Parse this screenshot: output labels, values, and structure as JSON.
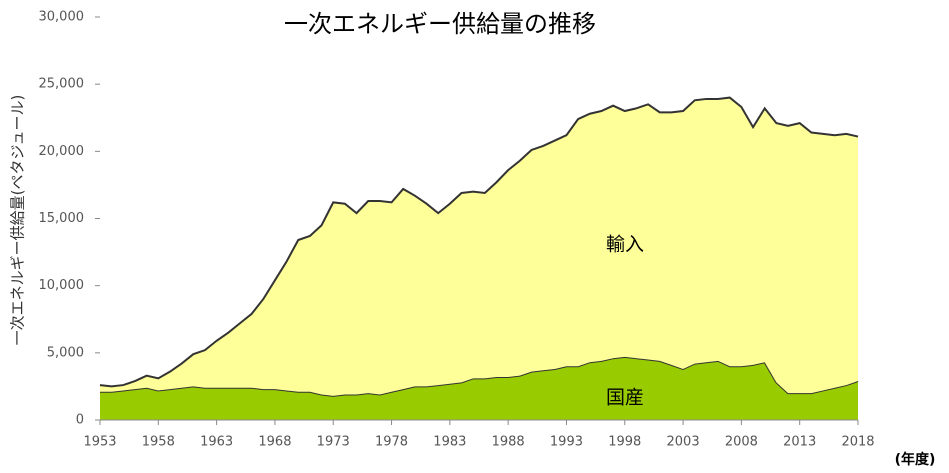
{
  "chart_data": {
    "type": "stacked-area",
    "title": "一次エネルギー供給量の推移",
    "y_label": "一次エネルギー供給量(ペタジュール)",
    "x_label": "(年度)",
    "x": [
      1953,
      1954,
      1955,
      1956,
      1957,
      1958,
      1959,
      1960,
      1961,
      1962,
      1963,
      1964,
      1965,
      1966,
      1967,
      1968,
      1969,
      1970,
      1971,
      1972,
      1973,
      1974,
      1975,
      1976,
      1977,
      1978,
      1979,
      1980,
      1981,
      1982,
      1983,
      1984,
      1985,
      1986,
      1987,
      1988,
      1989,
      1990,
      1991,
      1992,
      1993,
      1994,
      1995,
      1996,
      1997,
      1998,
      1999,
      2000,
      2001,
      2002,
      2003,
      2004,
      2005,
      2006,
      2007,
      2008,
      2009,
      2010,
      2011,
      2012,
      2013,
      2014,
      2015,
      2016,
      2017,
      2018
    ],
    "series": [
      {
        "name": "国産",
        "color": "#99cc00",
        "values": [
          2100,
          2100,
          2200,
          2300,
          2400,
          2200,
          2300,
          2400,
          2500,
          2400,
          2400,
          2400,
          2400,
          2400,
          2300,
          2300,
          2200,
          2100,
          2100,
          1900,
          1800,
          1900,
          1900,
          2000,
          1900,
          2100,
          2300,
          2500,
          2500,
          2600,
          2700,
          2800,
          3100,
          3100,
          3200,
          3200,
          3300,
          3600,
          3700,
          3800,
          4000,
          4000,
          4300,
          4400,
          4600,
          4700,
          4600,
          4500,
          4400,
          4100,
          3800,
          4200,
          4300,
          4400,
          4000,
          4000,
          4100,
          4300,
          2800,
          2000,
          2000,
          2000,
          2200,
          2400,
          2600,
          2900
        ]
      },
      {
        "name": "輸入",
        "color": "#ffff99",
        "values": [
          500,
          400,
          400,
          600,
          900,
          900,
          1300,
          1800,
          2400,
          2800,
          3500,
          4100,
          4800,
          5500,
          6700,
          8100,
          9600,
          11300,
          11600,
          12600,
          14400,
          14200,
          13500,
          14300,
          14400,
          14100,
          14900,
          14200,
          13600,
          12800,
          13400,
          14100,
          13900,
          13800,
          14500,
          15400,
          16000,
          16500,
          16700,
          17000,
          17200,
          18400,
          18500,
          18600,
          18800,
          18300,
          18600,
          19000,
          18500,
          18800,
          19200,
          19600,
          19600,
          19500,
          20000,
          19300,
          17700,
          18900,
          19300,
          19900,
          20100,
          19400,
          19100,
          18800,
          18700,
          18200
        ]
      }
    ],
    "xlim": [
      1953,
      2018
    ],
    "xticks": [
      1953,
      1958,
      1963,
      1968,
      1973,
      1978,
      1983,
      1988,
      1993,
      1998,
      2003,
      2008,
      2013,
      2018
    ],
    "ylim": [
      0,
      30000
    ],
    "yticks": [
      0,
      {
        "value": 5000,
        "label": "5,000"
      },
      {
        "value": 10000,
        "label": "10,000"
      },
      {
        "value": 15000,
        "label": "15,000"
      },
      {
        "value": 20000,
        "label": "20,000"
      },
      {
        "value": 25000,
        "label": "25,000"
      },
      {
        "value": 30000,
        "label": "30,000"
      }
    ]
  }
}
